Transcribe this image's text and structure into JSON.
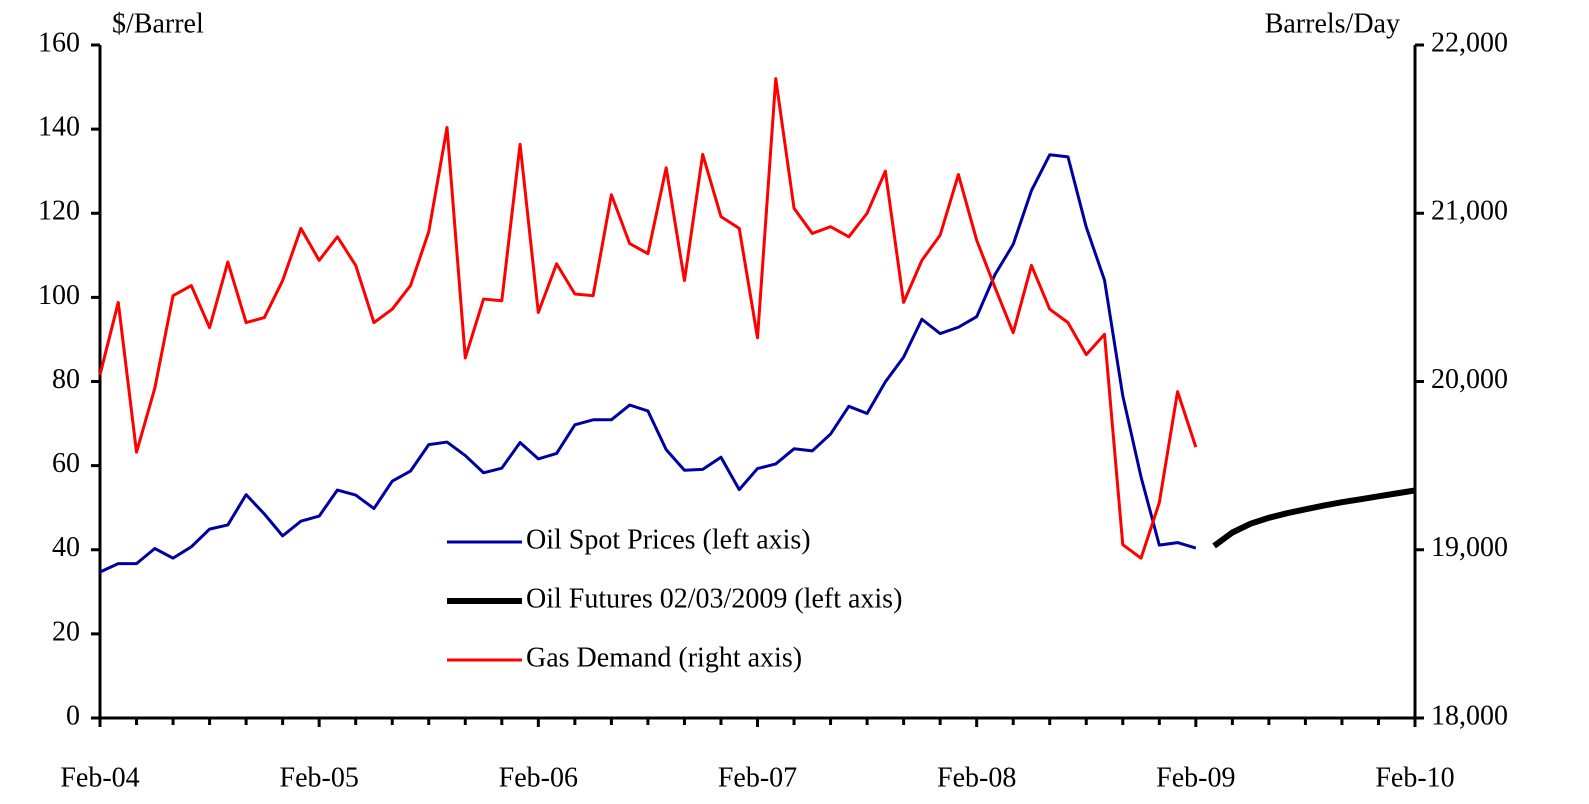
{
  "chart_data": {
    "type": "line",
    "y_label": "$/Barrel",
    "y2_label": "Barrels/Day",
    "xlim": [
      0,
      72
    ],
    "xticks": [
      {
        "value": 0,
        "label": "Feb-04"
      },
      {
        "value": 12,
        "label": "Feb-05"
      },
      {
        "value": 24,
        "label": "Feb-06"
      },
      {
        "value": 36,
        "label": "Feb-07"
      },
      {
        "value": 48,
        "label": "Feb-08"
      },
      {
        "value": 60,
        "label": "Feb-09"
      },
      {
        "value": 72,
        "label": "Feb-10"
      }
    ],
    "xticks_minor": [
      2,
      4,
      6,
      8,
      10,
      14,
      16,
      18,
      20,
      22,
      26,
      28,
      30,
      32,
      34,
      38,
      40,
      42,
      44,
      46,
      50,
      52,
      54,
      56,
      58,
      62,
      64,
      66,
      68,
      70
    ],
    "ylim": [
      0,
      160
    ],
    "yticks": [
      0,
      20,
      40,
      60,
      80,
      100,
      120,
      140,
      160
    ],
    "y2lim": [
      18000,
      22000
    ],
    "y2ticks": [
      {
        "value": 18000,
        "label": "18,000"
      },
      {
        "value": 19000,
        "label": "19,000"
      },
      {
        "value": 20000,
        "label": "20,000"
      },
      {
        "value": 21000,
        "label": "21,000"
      },
      {
        "value": 22000,
        "label": "22,000"
      }
    ],
    "grid": false,
    "legend": "lower center",
    "series": [
      {
        "name": "Oil Spot Prices (left axis)",
        "color": "#0000a0",
        "width": 3,
        "x": [
          0,
          1,
          2,
          3,
          4,
          5,
          6,
          7,
          8,
          9,
          10,
          11,
          12,
          13,
          14,
          15,
          16,
          17,
          18,
          19,
          20,
          21,
          22,
          23,
          24,
          25,
          26,
          27,
          28,
          29,
          30,
          31,
          32,
          33,
          34,
          35,
          36,
          37,
          38,
          39,
          40,
          41,
          42,
          43,
          44,
          45,
          46,
          47,
          48,
          49,
          50,
          51,
          52,
          53,
          54,
          55,
          56,
          57,
          58,
          59,
          60
        ],
        "values": [
          34.7,
          36.7,
          36.7,
          40.3,
          38,
          40.7,
          44.9,
          45.9,
          53.1,
          48.5,
          43.3,
          46.8,
          48,
          54.2,
          53,
          49.8,
          56.3,
          58.7,
          65,
          65.6,
          62.4,
          58.3,
          59.4,
          65.5,
          61.6,
          62.9,
          69.7,
          70.9,
          70.9,
          74.4,
          73,
          63.8,
          58.9,
          59.1,
          62,
          54.3,
          59.3,
          60.4,
          64,
          63.5,
          67.5,
          74.1,
          72.4,
          79.9,
          85.8,
          94.8,
          91.4,
          92.9,
          95.4,
          105.4,
          112.6,
          125.4,
          133.9,
          133.4,
          116.7,
          104.1,
          76.6,
          57.3,
          41.1,
          41.7,
          40.4
        ]
      },
      {
        "name": "Oil Futures 02/03/2009 (left axis)",
        "color": "#000000",
        "width": 6,
        "x": [
          61,
          62,
          63,
          64,
          65,
          66,
          67,
          68,
          69,
          70,
          71,
          72
        ],
        "values": [
          40.9,
          44.1,
          46.2,
          47.6,
          48.7,
          49.6,
          50.5,
          51.3,
          52,
          52.7,
          53.4,
          54.1
        ]
      },
      {
        "name": "Gas Demand (right axis)",
        "color": "#ff0000",
        "width": 3,
        "axis": "y2",
        "x": [
          0,
          1,
          2,
          3,
          4,
          5,
          6,
          7,
          8,
          9,
          10,
          11,
          12,
          13,
          14,
          15,
          16,
          17,
          18,
          19,
          20,
          21,
          22,
          23,
          24,
          25,
          26,
          27,
          28,
          29,
          30,
          31,
          32,
          33,
          34,
          35,
          36,
          37,
          38,
          39,
          40,
          41,
          42,
          43,
          44,
          45,
          46,
          47,
          48,
          49,
          50,
          51,
          52,
          53,
          54,
          55,
          56,
          57,
          58,
          59,
          60
        ],
        "values": [
          20040,
          20470,
          19580,
          19960,
          20510,
          20570,
          20320,
          20710,
          20350,
          20380,
          20600,
          20910,
          20720,
          20860,
          20690,
          20350,
          20430,
          20570,
          20890,
          21510,
          20140,
          20490,
          20480,
          21410,
          20410,
          20700,
          20520,
          20510,
          21110,
          20820,
          20760,
          21270,
          20600,
          21350,
          20980,
          20910,
          20260,
          21800,
          21030,
          20880,
          20920,
          20860,
          21000,
          21250,
          20470,
          20720,
          20870,
          21230,
          20840,
          20560,
          20290,
          20690,
          20430,
          20350,
          20160,
          20280,
          19030,
          18950,
          19280,
          19940,
          19610
        ]
      }
    ]
  }
}
